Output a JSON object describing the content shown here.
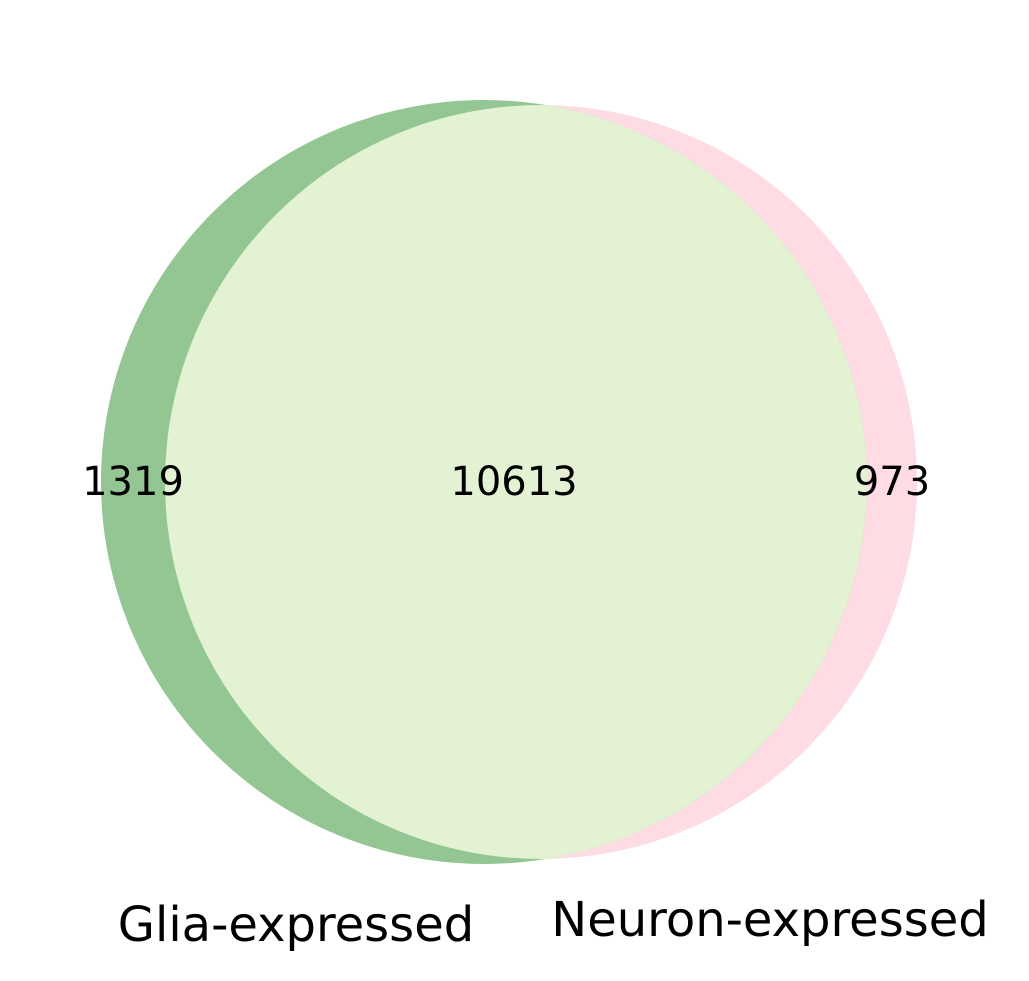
{
  "venn": {
    "sets": [
      {
        "name": "Glia-expressed",
        "color": "#93c692",
        "only_count": "1319"
      },
      {
        "name": "Neuron-expressed",
        "color": "#ffdbe4",
        "only_count": "973"
      }
    ],
    "intersection": {
      "count": "10613",
      "color": "#e3f2d2"
    }
  }
}
